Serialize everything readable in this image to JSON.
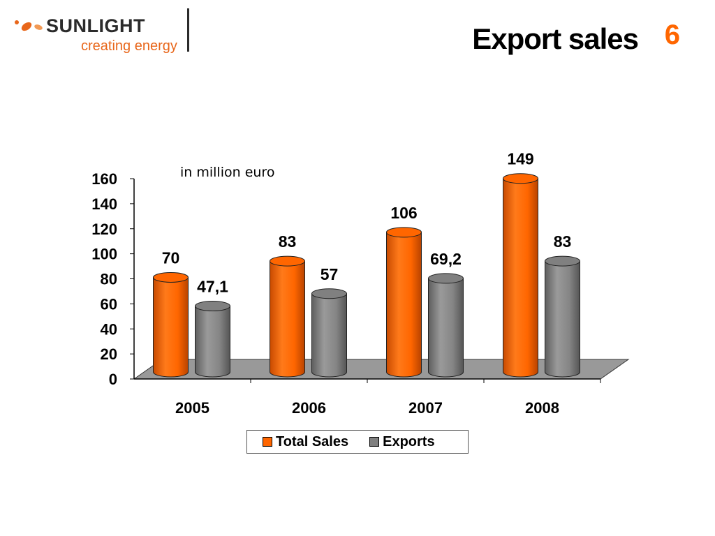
{
  "header": {
    "brand_name": "SUNLIGHT",
    "brand_tagline": "creating energy",
    "title": "Export sales",
    "page_number": "6"
  },
  "colors": {
    "total_sales": "#ff6600",
    "exports": "#808080",
    "floor": "#999999",
    "brand_orange": "#e8661a"
  },
  "chart_data": {
    "type": "bar",
    "annotation": "in million euro",
    "categories": [
      "2005",
      "2006",
      "2007",
      "2008"
    ],
    "series": [
      {
        "name": "Total Sales",
        "values": [
          70,
          83,
          106,
          149
        ],
        "labels": [
          "70",
          "83",
          "106",
          "149"
        ]
      },
      {
        "name": "Exports",
        "values": [
          47.1,
          57,
          69.2,
          83
        ],
        "labels": [
          "47,1",
          "57",
          "69,2",
          "83"
        ]
      }
    ],
    "ylim": [
      0,
      160
    ],
    "yticks": [
      0,
      20,
      40,
      60,
      80,
      100,
      120,
      140,
      160
    ],
    "xlabel": "",
    "ylabel": "",
    "grid": false,
    "legend_position": "bottom",
    "style": "3d-cylinder"
  }
}
